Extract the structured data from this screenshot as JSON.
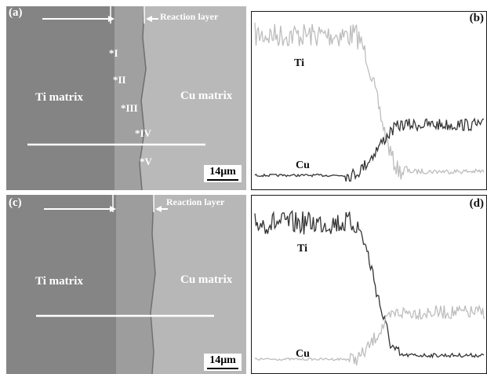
{
  "panels": {
    "a": {
      "letter": "(a)",
      "reaction_layer": "Reaction layer",
      "left_region": "Ti matrix",
      "right_region": "Cu matrix",
      "points": [
        "*I",
        "*II",
        "*III",
        "*IV",
        "*V"
      ],
      "scale": "14μm"
    },
    "b": {
      "letter": "(b)",
      "ti_label": "Ti",
      "cu_label": "Cu"
    },
    "c": {
      "letter": "(c)",
      "reaction_layer": "Reaction layer",
      "left_region": "Ti matrix",
      "right_region": "Cu matrix",
      "scale": "14μm"
    },
    "d": {
      "letter": "(d)",
      "ti_label": "Ti",
      "cu_label": "Cu"
    }
  },
  "colors": {
    "ti_matrix": "#848484",
    "reaction_layer": "#9c9c9c",
    "cu_matrix": "#b8b8b8",
    "ti_line_b": "#bdbdbd",
    "cu_line_b": "#333333",
    "ti_line_d": "#333333",
    "cu_line_d": "#bdbdbd"
  }
}
